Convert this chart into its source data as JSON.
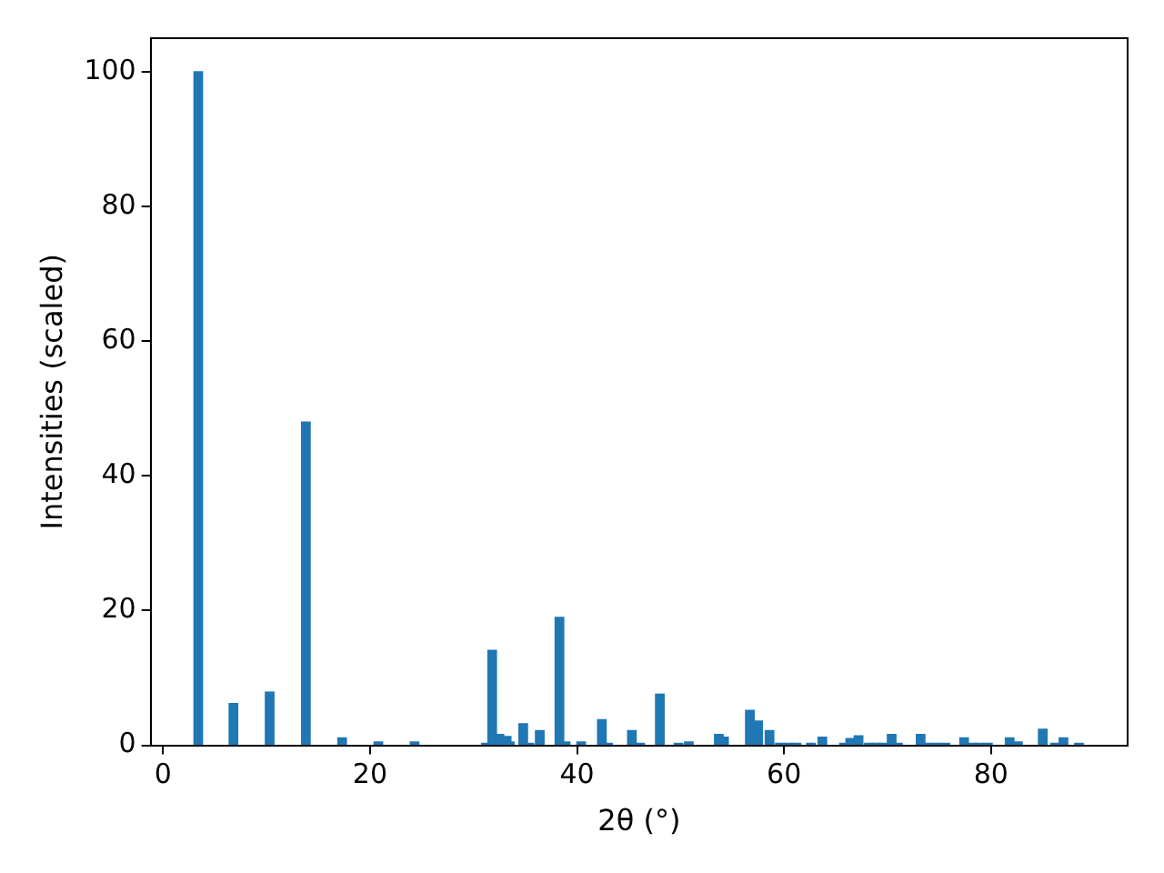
{
  "chart_data": {
    "type": "bar",
    "xlabel": "2θ (°)",
    "ylabel": "Intensities (scaled)",
    "color": "#1f77b4",
    "x": [
      3.4,
      6.8,
      10.3,
      13.8,
      17.3,
      20.8,
      24.3,
      31.2,
      31.8,
      32.5,
      33.2,
      33.5,
      34.8,
      35.4,
      36.4,
      38.3,
      38.9,
      40.4,
      42.4,
      43.0,
      45.3,
      46.1,
      48.0,
      49.8,
      50.8,
      53.7,
      54.2,
      56.7,
      57.5,
      58.6,
      59.6,
      60.4,
      61.2,
      62.6,
      63.7,
      65.8,
      66.4,
      67.2,
      68.2,
      68.9,
      69.6,
      70.4,
      71.0,
      73.2,
      74.0,
      74.8,
      75.6,
      77.4,
      78.1,
      78.9,
      79.7,
      81.8,
      82.6,
      85.0,
      86.2,
      87.0,
      88.5
    ],
    "values": [
      100,
      6.2,
      7.9,
      48,
      1.1,
      0.5,
      0.5,
      0.3,
      14.1,
      1.6,
      1.3,
      0.5,
      3.2,
      0.3,
      2.2,
      19,
      0.5,
      0.5,
      3.8,
      0.3,
      2.2,
      0.3,
      7.6,
      0.3,
      0.5,
      1.6,
      1.2,
      5.2,
      3.6,
      2.2,
      0.3,
      0.3,
      0.3,
      0.3,
      1.2,
      0.3,
      1.0,
      1.4,
      0.3,
      0.3,
      0.3,
      1.6,
      0.3,
      1.6,
      0.3,
      0.3,
      0.3,
      1.1,
      0.3,
      0.3,
      0.3,
      1.1,
      0.5,
      2.4,
      0.3,
      1.1,
      0.3
    ],
    "xlim": [
      -1.2,
      93.2
    ],
    "xticks": [
      0,
      20,
      40,
      60,
      80
    ],
    "ylim": [
      0,
      105
    ],
    "yticks": [
      0,
      20,
      40,
      60,
      80,
      100
    ],
    "grid": false,
    "legend": false
  }
}
